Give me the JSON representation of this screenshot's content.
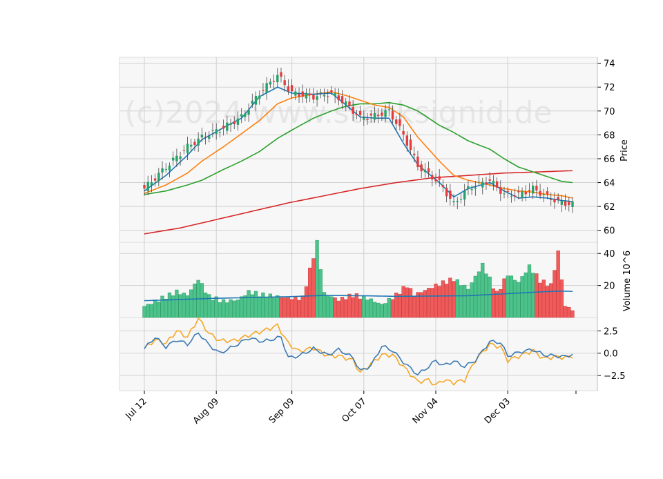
{
  "colors": {
    "up": "#26a269",
    "down": "#e83b3b",
    "ma_short": "#1f77b4",
    "ma_mid": "#ff7f0e",
    "ma_long": "#2ca02c",
    "ma_200": "#d62728",
    "osc_blue": "#3d7ab3",
    "osc_orange": "#f5a623",
    "volume_avg": "#1f77b4",
    "panel_bg": "#f7f7f7",
    "grid": "#d0d0d0"
  },
  "chart_data": {
    "type": "candlestick",
    "watermark": "(c)2024 www.stocksignid.de",
    "x_tick_labels": [
      "Jul 12",
      "Aug 09",
      "Sep 09",
      "Oct 07",
      "Nov 04",
      "Dec 03"
    ],
    "x_tick_index": [
      0,
      20,
      41,
      61,
      81,
      101
    ],
    "n_days": 120,
    "price_panel": {
      "ylabel": "Price",
      "ylim": [
        59.0,
        74.5
      ],
      "y_ticks": [
        60,
        62,
        64,
        66,
        68,
        70,
        72,
        74
      ],
      "y_tick_labels": [
        "60",
        "62",
        "64",
        "66",
        "68",
        "70",
        "72",
        "74"
      ],
      "close_anchors": [
        [
          0,
          63.5
        ],
        [
          6,
          65.3
        ],
        [
          12,
          67.0
        ],
        [
          16,
          67.8
        ],
        [
          22,
          68.6
        ],
        [
          27,
          69.5
        ],
        [
          32,
          71.5
        ],
        [
          37,
          73.0
        ],
        [
          41,
          71.5
        ],
        [
          47,
          71.2
        ],
        [
          52,
          71.5
        ],
        [
          56,
          70.6
        ],
        [
          60,
          69.4
        ],
        [
          64,
          69.6
        ],
        [
          68,
          70.0
        ],
        [
          72,
          68.0
        ],
        [
          76,
          65.4
        ],
        [
          82,
          64.0
        ],
        [
          86,
          62.2
        ],
        [
          90,
          63.5
        ],
        [
          96,
          64.2
        ],
        [
          100,
          63.0
        ],
        [
          104,
          63.0
        ],
        [
          108,
          63.5
        ],
        [
          112,
          62.8
        ],
        [
          116,
          62.3
        ],
        [
          119,
          62.2
        ]
      ],
      "ma_short_anchors": [
        [
          0,
          63.3
        ],
        [
          6,
          64.6
        ],
        [
          12,
          66.3
        ],
        [
          16,
          67.6
        ],
        [
          22,
          68.6
        ],
        [
          27,
          69.4
        ],
        [
          32,
          71.2
        ],
        [
          37,
          72.0
        ],
        [
          41,
          71.5
        ],
        [
          47,
          71.4
        ],
        [
          52,
          71.5
        ],
        [
          56,
          70.5
        ],
        [
          60,
          69.5
        ],
        [
          64,
          69.4
        ],
        [
          68,
          69.4
        ],
        [
          72,
          67.3
        ],
        [
          76,
          65.5
        ],
        [
          82,
          64.0
        ],
        [
          86,
          62.8
        ],
        [
          90,
          63.5
        ],
        [
          96,
          64.0
        ],
        [
          100,
          63.3
        ],
        [
          104,
          62.7
        ],
        [
          108,
          62.8
        ],
        [
          112,
          62.7
        ],
        [
          116,
          62.5
        ],
        [
          119,
          62.4
        ]
      ],
      "ma_mid_anchors": [
        [
          0,
          63.1
        ],
        [
          6,
          63.8
        ],
        [
          12,
          64.8
        ],
        [
          16,
          65.8
        ],
        [
          22,
          67.0
        ],
        [
          27,
          68.1
        ],
        [
          32,
          69.2
        ],
        [
          37,
          70.6
        ],
        [
          41,
          71.1
        ],
        [
          47,
          71.4
        ],
        [
          52,
          71.6
        ],
        [
          56,
          71.3
        ],
        [
          60,
          70.9
        ],
        [
          64,
          70.5
        ],
        [
          68,
          70.3
        ],
        [
          72,
          69.5
        ],
        [
          76,
          67.8
        ],
        [
          82,
          65.8
        ],
        [
          86,
          64.6
        ],
        [
          90,
          64.2
        ],
        [
          96,
          63.8
        ],
        [
          100,
          63.5
        ],
        [
          104,
          63.3
        ],
        [
          108,
          63.2
        ],
        [
          112,
          63.0
        ],
        [
          116,
          62.9
        ],
        [
          119,
          62.7
        ]
      ],
      "ma_long_anchors": [
        [
          0,
          63.0
        ],
        [
          6,
          63.3
        ],
        [
          12,
          63.8
        ],
        [
          16,
          64.2
        ],
        [
          22,
          65.1
        ],
        [
          27,
          65.8
        ],
        [
          32,
          66.6
        ],
        [
          37,
          67.7
        ],
        [
          41,
          68.4
        ],
        [
          47,
          69.4
        ],
        [
          52,
          70.0
        ],
        [
          56,
          70.4
        ],
        [
          60,
          70.6
        ],
        [
          64,
          70.6
        ],
        [
          68,
          70.7
        ],
        [
          72,
          70.5
        ],
        [
          76,
          70.0
        ],
        [
          82,
          68.8
        ],
        [
          86,
          68.2
        ],
        [
          90,
          67.5
        ],
        [
          96,
          66.8
        ],
        [
          100,
          66.0
        ],
        [
          104,
          65.3
        ],
        [
          108,
          64.9
        ],
        [
          112,
          64.5
        ],
        [
          116,
          64.1
        ],
        [
          119,
          64.0
        ]
      ],
      "ma_200_anchors": [
        [
          0,
          59.7
        ],
        [
          10,
          60.2
        ],
        [
          20,
          60.9
        ],
        [
          30,
          61.6
        ],
        [
          40,
          62.3
        ],
        [
          50,
          62.9
        ],
        [
          60,
          63.5
        ],
        [
          70,
          64.0
        ],
        [
          80,
          64.4
        ],
        [
          90,
          64.6
        ],
        [
          100,
          64.8
        ],
        [
          110,
          64.9
        ],
        [
          119,
          65.0
        ]
      ]
    },
    "volume_panel": {
      "ylabel": "Volume  10^6",
      "ylim": [
        0,
        47
      ],
      "y_ticks": [
        20,
        40
      ],
      "y_tick_labels": [
        "20",
        "40"
      ],
      "volume_anchors": [
        [
          0,
          7
        ],
        [
          3,
          10
        ],
        [
          6,
          13
        ],
        [
          9,
          16
        ],
        [
          12,
          14
        ],
        [
          15,
          24
        ],
        [
          18,
          13
        ],
        [
          22,
          10
        ],
        [
          26,
          11
        ],
        [
          29,
          16
        ],
        [
          33,
          14
        ],
        [
          37,
          13
        ],
        [
          40,
          12
        ],
        [
          44,
          12
        ],
        [
          48,
          47
        ],
        [
          50,
          15
        ],
        [
          54,
          11
        ],
        [
          58,
          14
        ],
        [
          62,
          12
        ],
        [
          66,
          8
        ],
        [
          70,
          14
        ],
        [
          73,
          20
        ],
        [
          75,
          14
        ],
        [
          78,
          17
        ],
        [
          81,
          20
        ],
        [
          86,
          24
        ],
        [
          90,
          18
        ],
        [
          94,
          33
        ],
        [
          98,
          15
        ],
        [
          101,
          27
        ],
        [
          104,
          22
        ],
        [
          107,
          32
        ],
        [
          110,
          23
        ],
        [
          113,
          20
        ],
        [
          115,
          41
        ],
        [
          117,
          7
        ],
        [
          119,
          5
        ]
      ],
      "avg_anchors": [
        [
          0,
          10.5
        ],
        [
          20,
          12.0
        ],
        [
          40,
          13.0
        ],
        [
          50,
          13.8
        ],
        [
          60,
          13.6
        ],
        [
          70,
          13.2
        ],
        [
          80,
          13.4
        ],
        [
          90,
          13.6
        ],
        [
          100,
          14.8
        ],
        [
          110,
          16.0
        ],
        [
          116,
          16.5
        ],
        [
          119,
          16.3
        ]
      ]
    },
    "oscillator_panel": {
      "ylim": [
        -4.2,
        4.0
      ],
      "y_ticks": [
        -2.5,
        0.0,
        2.5
      ],
      "y_tick_labels": [
        "−2.5",
        "0.0",
        "2.5"
      ],
      "blue_anchors": [
        [
          0,
          0.5
        ],
        [
          3,
          1.8
        ],
        [
          6,
          0.7
        ],
        [
          9,
          1.5
        ],
        [
          12,
          1.0
        ],
        [
          15,
          2.3
        ],
        [
          18,
          0.9
        ],
        [
          21,
          0.0
        ],
        [
          25,
          0.8
        ],
        [
          29,
          1.7
        ],
        [
          33,
          1.3
        ],
        [
          38,
          1.8
        ],
        [
          40,
          -0.5
        ],
        [
          43,
          -0.3
        ],
        [
          47,
          0.5
        ],
        [
          51,
          -0.2
        ],
        [
          54,
          0.4
        ],
        [
          58,
          -0.5
        ],
        [
          60,
          -2.0
        ],
        [
          63,
          -1.4
        ],
        [
          66,
          0.8
        ],
        [
          69,
          0.3
        ],
        [
          72,
          -1.0
        ],
        [
          76,
          -2.4
        ],
        [
          79,
          -1.5
        ],
        [
          81,
          -0.8
        ],
        [
          83,
          -1.4
        ],
        [
          86,
          -0.9
        ],
        [
          89,
          -1.5
        ],
        [
          92,
          -0.8
        ],
        [
          96,
          1.3
        ],
        [
          99,
          1.2
        ],
        [
          101,
          -0.3
        ],
        [
          105,
          0.2
        ],
        [
          108,
          0.4
        ],
        [
          111,
          -0.2
        ],
        [
          114,
          -0.3
        ],
        [
          117,
          -0.4
        ],
        [
          119,
          -0.1
        ]
      ],
      "orange_anchors": [
        [
          0,
          0.5
        ],
        [
          3,
          1.5
        ],
        [
          6,
          1.1
        ],
        [
          9,
          2.5
        ],
        [
          12,
          1.8
        ],
        [
          15,
          3.9
        ],
        [
          18,
          2.2
        ],
        [
          21,
          1.4
        ],
        [
          25,
          1.4
        ],
        [
          29,
          2.0
        ],
        [
          33,
          2.5
        ],
        [
          37,
          3.1
        ],
        [
          40,
          1.1
        ],
        [
          43,
          0.2
        ],
        [
          47,
          0.6
        ],
        [
          51,
          -0.3
        ],
        [
          54,
          -0.3
        ],
        [
          58,
          -0.8
        ],
        [
          60,
          -2.2
        ],
        [
          63,
          -1.2
        ],
        [
          66,
          -0.2
        ],
        [
          69,
          -0.2
        ],
        [
          72,
          -1.5
        ],
        [
          76,
          -3.2
        ],
        [
          79,
          -3.0
        ],
        [
          81,
          -3.6
        ],
        [
          83,
          -3.0
        ],
        [
          86,
          -3.3
        ],
        [
          89,
          -3.0
        ],
        [
          92,
          -0.8
        ],
        [
          96,
          1.0
        ],
        [
          99,
          0.7
        ],
        [
          101,
          -0.8
        ],
        [
          105,
          -0.2
        ],
        [
          108,
          0.3
        ],
        [
          111,
          -0.6
        ],
        [
          114,
          -0.4
        ],
        [
          117,
          -0.5
        ],
        [
          119,
          -0.3
        ]
      ]
    }
  }
}
